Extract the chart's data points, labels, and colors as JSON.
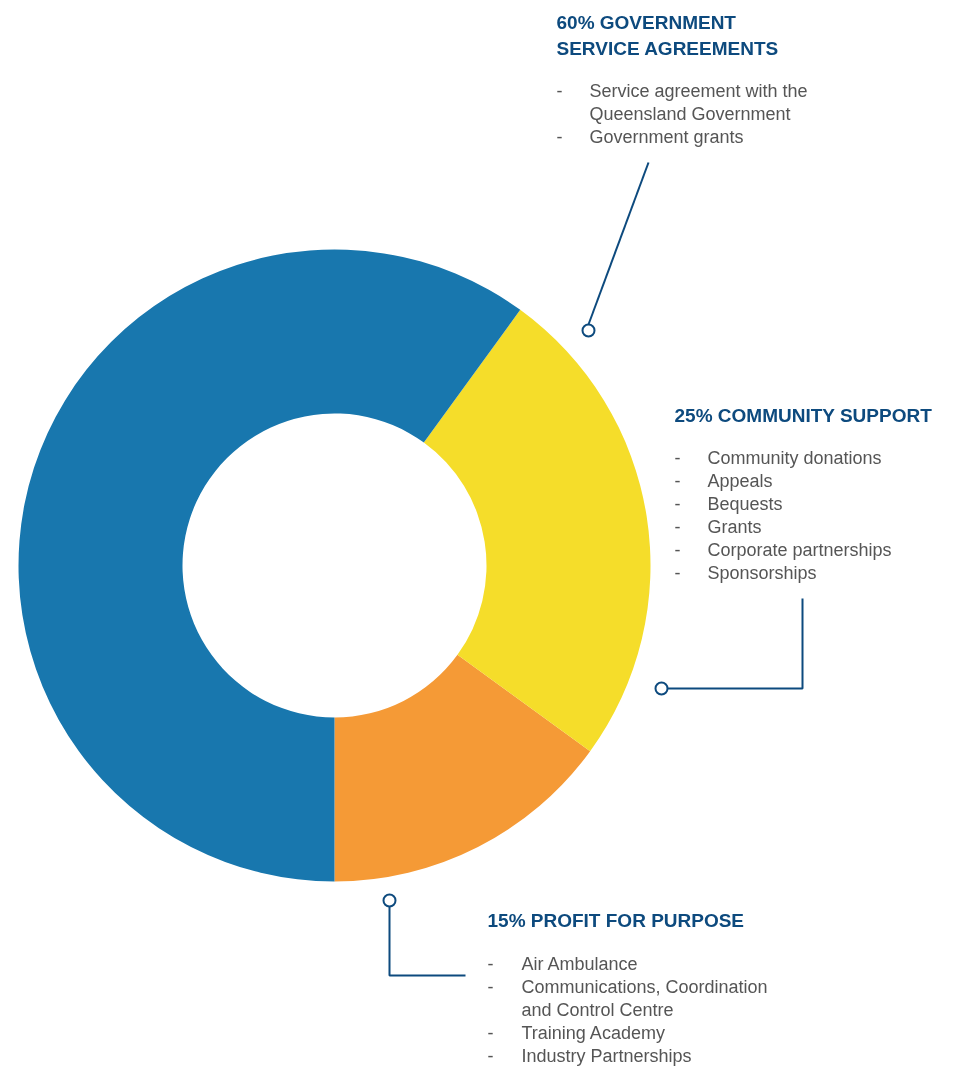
{
  "chart_data": {
    "type": "donut",
    "categories": [
      "PROFIT FOR PURPOSE",
      "COMMUNITY SUPPORT",
      "GOVERNMENT SERVICE AGREEMENTS"
    ],
    "values": [
      15,
      25,
      60
    ],
    "value_labels": [
      "15%",
      "25%",
      "60%"
    ],
    "colors": [
      "#f59a36",
      "#f5dd2a",
      "#1877ae"
    ],
    "annotations": [
      "- Service agreement with the",
      "Queensland Government",
      "- Government grants",
      "- Community donations",
      "- Appeals",
      "- Bequests",
      "- Grants",
      "- Corporate partnerships",
      "- Sponsorships",
      "- Air Ambulance",
      "- Communications, Coordination",
      "and Control Centre",
      "- Training Academy",
      "- Industry Partnerships"
    ]
  }
}
